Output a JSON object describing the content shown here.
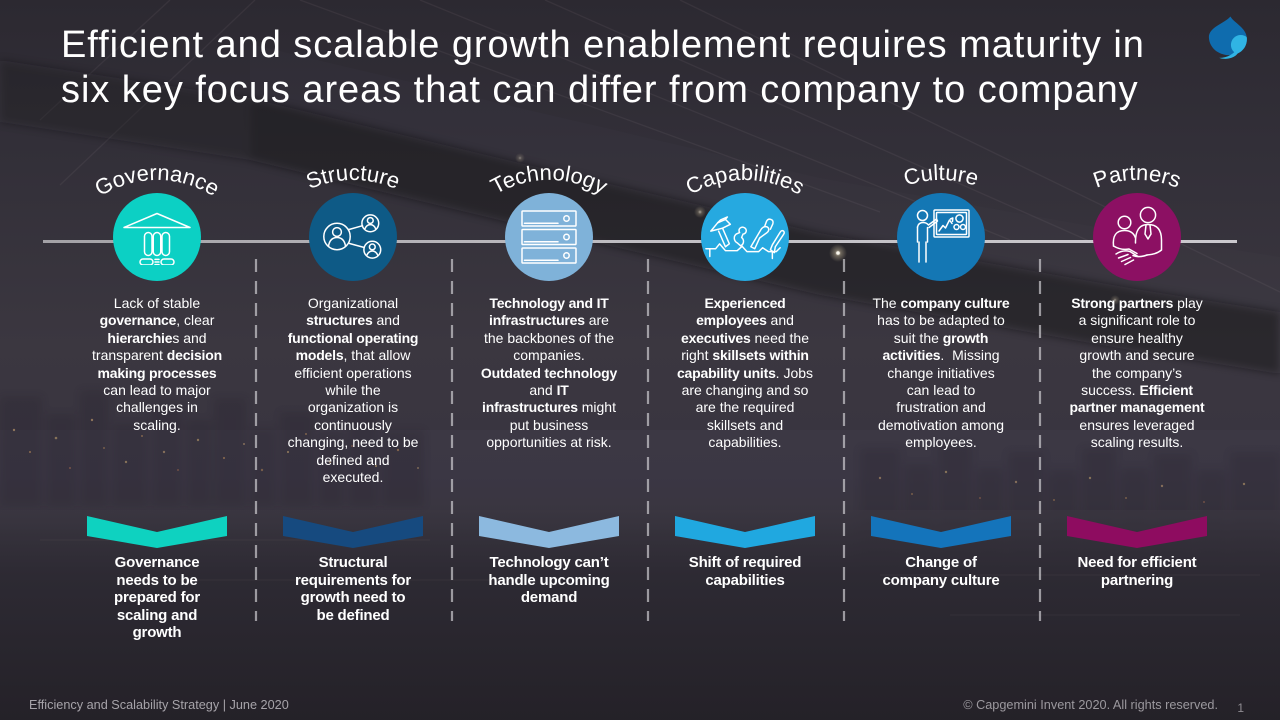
{
  "slide": {
    "title": "Efficient and scalable growth enablement requires maturity in\nsix key focus areas that can differ from company to company"
  },
  "logo": {
    "name": "capgemini-spade-logo",
    "color_dark": "#0f6db1",
    "color_light": "#2cb2e2"
  },
  "columns": [
    {
      "label": "Governance",
      "icon": "bank-icon",
      "circle_color": "#0cd0c4",
      "chevron_color": "#0ed2c0",
      "description": [
        {
          "t": "Lack of stable\n",
          "b": false
        },
        {
          "t": "governance",
          "b": true
        },
        {
          "t": ", clear\n",
          "b": false
        },
        {
          "t": "hierarchie",
          "b": true
        },
        {
          "t": "s and\ntransparent ",
          "b": false
        },
        {
          "t": "decision\nmaking processes",
          "b": true
        },
        {
          "t": "\ncan lead to major\nchallenges in\nscaling.",
          "b": false
        }
      ],
      "summary": "Governance\nneeds to be\nprepared for\nscaling and\ngrowth"
    },
    {
      "label": "Structure",
      "icon": "people-network-icon",
      "circle_color": "#0e5a86",
      "chevron_color": "#164a7f",
      "description": [
        {
          "t": "Organizational\n",
          "b": false
        },
        {
          "t": "structures",
          "b": true
        },
        {
          "t": " and\n",
          "b": false
        },
        {
          "t": "functional operating\nmodels",
          "b": true
        },
        {
          "t": ", that allow\nefficient operations\nwhile the\norganization is\ncontinuously\nchanging, need to be\ndefined and\nexecuted.",
          "b": false
        }
      ],
      "summary": "Structural\nrequirements for\ngrowth need to\nbe defined"
    },
    {
      "label": "Technology",
      "icon": "server-stack-icon",
      "circle_color": "#7fb2d9",
      "chevron_color": "#8cb9df",
      "description": [
        {
          "t": "Technology and IT\ninfrastructures",
          "b": true
        },
        {
          "t": " are\nthe backbones of the\ncompanies.\n",
          "b": false
        },
        {
          "t": "Outdated technology",
          "b": true
        },
        {
          "t": "\nand ",
          "b": false
        },
        {
          "t": "IT\ninfrastructures",
          "b": true
        },
        {
          "t": " might\nput business\nopportunities at risk.",
          "b": false
        }
      ],
      "summary": "Technology can’t\nhandle upcoming\ndemand"
    },
    {
      "label": "Capabilities",
      "icon": "tools-icon",
      "circle_color": "#26a9e0",
      "chevron_color": "#20a8e0",
      "description": [
        {
          "t": "Experienced\nemployees",
          "b": true
        },
        {
          "t": " and\n",
          "b": false
        },
        {
          "t": "executives",
          "b": true
        },
        {
          "t": " need the\nright ",
          "b": false
        },
        {
          "t": "skillsets within\ncapability units",
          "b": true
        },
        {
          "t": ". Jobs\nare changing and so\nare the required\nskillsets and\ncapabilities.",
          "b": false
        }
      ],
      "summary": "Shift of required\ncapabilities"
    },
    {
      "label": "Culture",
      "icon": "presenter-board-icon",
      "circle_color": "#1477b4",
      "chevron_color": "#1474bb",
      "description": [
        {
          "t": "The ",
          "b": false
        },
        {
          "t": "company culture",
          "b": true
        },
        {
          "t": "\nhas to be adapted to\nsuit the ",
          "b": false
        },
        {
          "t": "growth\nactivities",
          "b": true
        },
        {
          "t": ".  Missing\nchange initiatives\ncan lead to\nfrustration and\ndemotivation among\nemployees.",
          "b": false
        }
      ],
      "summary": "Change of\ncompany culture"
    },
    {
      "label": "Partners",
      "icon": "handshake-icon",
      "circle_color": "#8c1063",
      "chevron_color": "#8e0c60",
      "description": [
        {
          "t": "Strong partners",
          "b": true
        },
        {
          "t": " play\na significant role to\nensure healthy\ngrowth and secure\nthe company’s\nsuccess. ",
          "b": false
        },
        {
          "t": "Efficient\npartner management",
          "b": true
        },
        {
          "t": "\nensures leveraged\nscaling results.",
          "b": false
        }
      ],
      "summary": "Need for efficient\npartnering"
    }
  ],
  "footer": {
    "left": "Efficiency and Scalability Strategy | June 2020",
    "right": "© Capgemini Invent 2020. All rights reserved.",
    "page_number": "1"
  }
}
